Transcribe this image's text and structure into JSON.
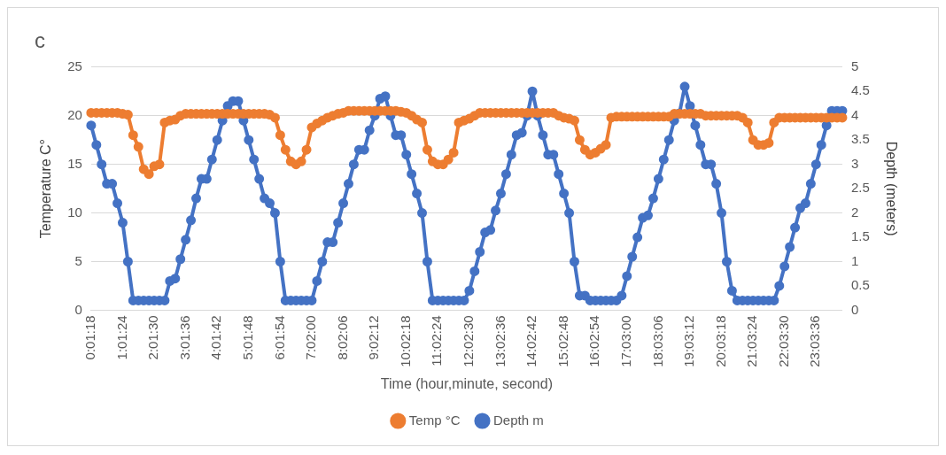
{
  "chart_data": {
    "type": "line",
    "title": "c",
    "xlabel": "Time (hour,minute, second)",
    "ylabel": "Temperature C°",
    "y2label": "Depth (meters)",
    "categories": [
      "0:01:18",
      null,
      null,
      null,
      null,
      null,
      "1:01:24",
      null,
      null,
      null,
      null,
      null,
      "2:01:30",
      null,
      null,
      null,
      null,
      null,
      "3:01:36",
      null,
      null,
      null,
      null,
      null,
      "4:01:42",
      null,
      null,
      null,
      null,
      null,
      "5:01:48",
      null,
      null,
      null,
      null,
      null,
      "6:01:54",
      null,
      null,
      null,
      null,
      null,
      "7:02:00",
      null,
      null,
      null,
      null,
      null,
      "8:02:06",
      null,
      null,
      null,
      null,
      null,
      "9:02:12",
      null,
      null,
      null,
      null,
      null,
      "10:02:18",
      null,
      null,
      null,
      null,
      null,
      "11:02:24",
      null,
      null,
      null,
      null,
      null,
      "12:02:30",
      null,
      null,
      null,
      null,
      null,
      "13:02:36",
      null,
      null,
      null,
      null,
      null,
      "14:02:42",
      null,
      null,
      null,
      null,
      null,
      "15:02:48",
      null,
      null,
      null,
      null,
      null,
      "16:02:54",
      null,
      null,
      null,
      null,
      null,
      "17:03:00",
      null,
      null,
      null,
      null,
      null,
      "18:03:06",
      null,
      null,
      null,
      null,
      null,
      "19:03:12",
      null,
      null,
      null,
      null,
      null,
      "20:03:18",
      null,
      null,
      null,
      null,
      null,
      "21:03:24",
      null,
      null,
      null,
      null,
      null,
      "22:03:30",
      null,
      null,
      null,
      null,
      null,
      "23:03:36",
      null,
      null,
      null,
      null,
      null
    ],
    "series": [
      {
        "name": "Temp °C",
        "color": "#ed7d31",
        "values": [
          20.3,
          20.3,
          20.3,
          20.3,
          20.3,
          20.3,
          20.2,
          20.1,
          18.0,
          16.8,
          14.5,
          14.0,
          14.8,
          15.0,
          19.3,
          19.5,
          19.6,
          20.0,
          20.2,
          20.2,
          20.2,
          20.2,
          20.2,
          20.2,
          20.2,
          20.2,
          20.2,
          20.2,
          20.2,
          20.2,
          20.2,
          20.2,
          20.2,
          20.2,
          20.1,
          19.8,
          18.0,
          16.5,
          15.3,
          15.0,
          15.3,
          16.5,
          18.8,
          19.2,
          19.5,
          19.8,
          20.0,
          20.2,
          20.3,
          20.5,
          20.5,
          20.5,
          20.5,
          20.5,
          20.5,
          20.5,
          20.5,
          20.5,
          20.5,
          20.4,
          20.3,
          20.0,
          19.6,
          19.3,
          16.5,
          15.3,
          15.0,
          15.0,
          15.5,
          16.2,
          19.3,
          19.5,
          19.7,
          20.0,
          20.3,
          20.3,
          20.3,
          20.3,
          20.3,
          20.3,
          20.3,
          20.3,
          20.3,
          20.3,
          20.3,
          20.3,
          20.3,
          20.3,
          20.3,
          20.0,
          19.8,
          19.7,
          19.5,
          17.5,
          16.5,
          16.0,
          16.2,
          16.6,
          17.0,
          19.8,
          19.9,
          19.9,
          19.9,
          19.9,
          19.9,
          19.9,
          19.9,
          19.9,
          19.9,
          19.9,
          19.9,
          20.2,
          20.2,
          20.2,
          20.2,
          20.2,
          20.2,
          20.0,
          20.0,
          20.0,
          20.0,
          20.0,
          20.0,
          20.0,
          19.8,
          19.3,
          17.5,
          17.0,
          17.0,
          17.2,
          19.3,
          19.8,
          19.8,
          19.8,
          19.8,
          19.8,
          19.8,
          19.8,
          19.8,
          19.8,
          19.8,
          19.8,
          19.8,
          19.8
        ]
      },
      {
        "name": "Depth m",
        "color": "#4472c4",
        "axis": "y2",
        "values": [
          3.8,
          3.4,
          3.0,
          2.6,
          2.6,
          2.2,
          1.8,
          1.0,
          0.2,
          0.2,
          0.2,
          0.2,
          0.2,
          0.2,
          0.2,
          0.6,
          0.65,
          1.05,
          1.45,
          1.85,
          2.3,
          2.7,
          2.7,
          3.1,
          3.5,
          3.9,
          4.2,
          4.3,
          4.3,
          3.9,
          3.5,
          3.1,
          2.7,
          2.3,
          2.2,
          2.0,
          1.0,
          0.2,
          0.2,
          0.2,
          0.2,
          0.2,
          0.2,
          0.6,
          1.0,
          1.4,
          1.4,
          1.8,
          2.2,
          2.6,
          3.0,
          3.3,
          3.3,
          3.7,
          4.0,
          4.35,
          4.4,
          4.0,
          3.6,
          3.6,
          3.2,
          2.8,
          2.4,
          2.0,
          1.0,
          0.2,
          0.2,
          0.2,
          0.2,
          0.2,
          0.2,
          0.2,
          0.4,
          0.8,
          1.2,
          1.6,
          1.65,
          2.05,
          2.4,
          2.8,
          3.2,
          3.6,
          3.65,
          4.0,
          4.5,
          4.0,
          3.6,
          3.2,
          3.2,
          2.8,
          2.4,
          2.0,
          1.0,
          0.3,
          0.3,
          0.2,
          0.2,
          0.2,
          0.2,
          0.2,
          0.2,
          0.3,
          0.7,
          1.1,
          1.5,
          1.9,
          1.95,
          2.3,
          2.7,
          3.1,
          3.5,
          3.9,
          4.05,
          4.6,
          4.2,
          3.8,
          3.4,
          3.0,
          3.0,
          2.6,
          2.0,
          1.0,
          0.4,
          0.2,
          0.2,
          0.2,
          0.2,
          0.2,
          0.2,
          0.2,
          0.2,
          0.5,
          0.9,
          1.3,
          1.7,
          2.1,
          2.2,
          2.6,
          3.0,
          3.4,
          3.8,
          4.1,
          4.1,
          4.1
        ]
      }
    ],
    "ylim": [
      0,
      25
    ],
    "yticks": [
      0,
      5,
      10,
      15,
      20,
      25
    ],
    "y2lim": [
      0,
      5
    ],
    "y2ticks": [
      0,
      0.5,
      1,
      1.5,
      2,
      2.5,
      3,
      3.5,
      4,
      4.5,
      5
    ],
    "grid": "y",
    "legend": "bottom",
    "marker": "circle",
    "line_style": "solid"
  }
}
